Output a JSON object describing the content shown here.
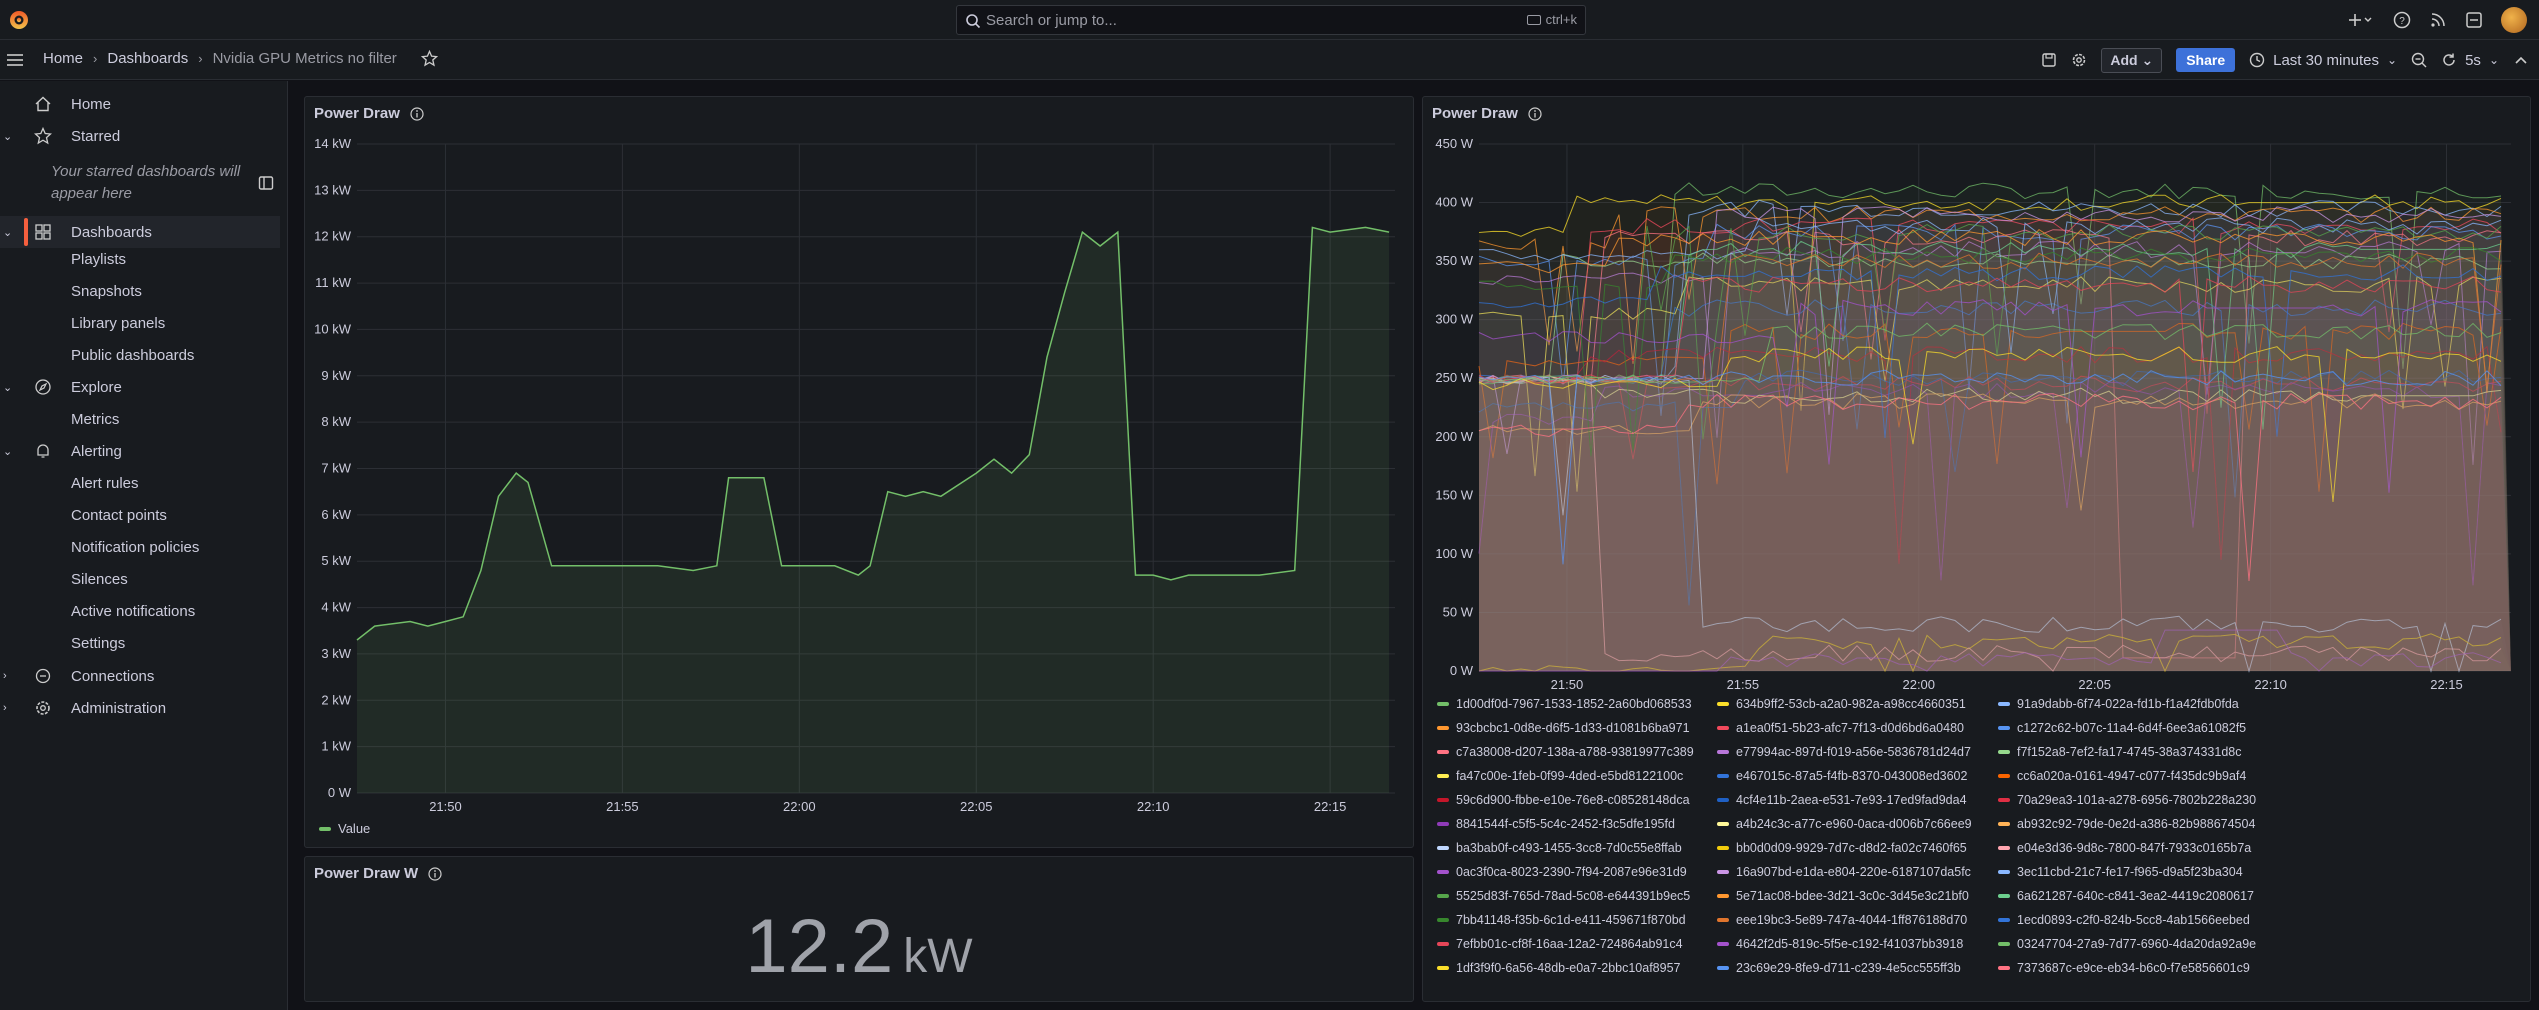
{
  "search": {
    "placeholder": "Search or jump to...",
    "shortcut": "ctrl+k"
  },
  "breadcrumb": {
    "home": "Home",
    "dashboards": "Dashboards",
    "current": "Nvidia GPU Metrics no filter"
  },
  "toolbar": {
    "add_label": "Add",
    "share_label": "Share",
    "time_range": "Last 30 minutes",
    "refresh_interval": "5s"
  },
  "sidebar": {
    "home": "Home",
    "starred": "Starred",
    "starred_note": "Your starred dashboards will appear here",
    "dashboards": "Dashboards",
    "dashboards_children": [
      "Playlists",
      "Snapshots",
      "Library panels",
      "Public dashboards"
    ],
    "explore": "Explore",
    "explore_children": [
      "Metrics"
    ],
    "alerting": "Alerting",
    "alerting_children": [
      "Alert rules",
      "Contact points",
      "Notification policies",
      "Silences",
      "Active notifications",
      "Settings"
    ],
    "connections": "Connections",
    "administration": "Administration"
  },
  "panels": {
    "left_title": "Power Draw",
    "left_legend": "Value",
    "right_title": "Power Draw",
    "stat_title": "Power Draw W",
    "stat_value": "12.2",
    "stat_unit": "kW"
  },
  "colors": {
    "accent": "#f55f3e",
    "series_green": "#73bf69",
    "share_blue": "#3d71d9"
  },
  "chart_data": [
    {
      "type": "area",
      "title": "Power Draw",
      "x_ticks": [
        "21:50",
        "21:55",
        "22:00",
        "22:05",
        "22:10",
        "22:15"
      ],
      "y_ticks": [
        "0 W",
        "1 kW",
        "2 kW",
        "3 kW",
        "4 kW",
        "5 kW",
        "6 kW",
        "7 kW",
        "8 kW",
        "9 kW",
        "10 kW",
        "11 kW",
        "12 kW",
        "13 kW",
        "14 kW"
      ],
      "ylim": [
        0,
        14
      ],
      "series": [
        {
          "name": "Value",
          "x": [
            "21:47:30",
            "21:48",
            "21:49",
            "21:49:30",
            "21:50",
            "21:50:30",
            "21:51",
            "21:51:30",
            "21:52",
            "21:52:20",
            "21:53",
            "21:54",
            "21:55",
            "21:56",
            "21:57",
            "21:57:40",
            "21:58",
            "21:59",
            "21:59:30",
            "22:00",
            "22:01",
            "22:01:40",
            "22:02",
            "22:02:30",
            "22:03",
            "22:03:30",
            "22:04",
            "22:05",
            "22:05:30",
            "22:06",
            "22:06:30",
            "22:07",
            "22:07:30",
            "22:08",
            "22:08:30",
            "22:09",
            "22:09:30",
            "22:10",
            "22:10:30",
            "22:11",
            "22:12",
            "22:13",
            "22:14",
            "22:14:30",
            "22:15",
            "22:16",
            "22:16:40"
          ],
          "values": [
            3.3,
            3.6,
            3.7,
            3.6,
            3.7,
            3.8,
            4.8,
            6.4,
            6.9,
            6.7,
            4.9,
            4.9,
            4.9,
            4.9,
            4.8,
            4.9,
            6.8,
            6.8,
            4.9,
            4.9,
            4.9,
            4.7,
            4.9,
            6.5,
            6.4,
            6.5,
            6.4,
            6.9,
            7.2,
            6.9,
            7.3,
            9.4,
            10.8,
            12.1,
            11.8,
            12.1,
            4.7,
            4.7,
            4.6,
            4.7,
            4.7,
            4.7,
            4.8,
            12.2,
            12.1,
            12.2,
            12.1
          ]
        }
      ]
    },
    {
      "type": "line",
      "title": "Power Draw",
      "x_ticks": [
        "21:50",
        "21:55",
        "22:00",
        "22:05",
        "22:10",
        "22:15"
      ],
      "y_ticks": [
        "0 W",
        "50 W",
        "100 W",
        "150 W",
        "200 W",
        "250 W",
        "300 W",
        "350 W",
        "400 W",
        "450 W"
      ],
      "ylim": [
        0,
        450
      ],
      "legend_placement": "bottom",
      "series": [
        {
          "name": "1d00df0d-7967-1533-1852-2a60bd068533",
          "color": "#73bf69"
        },
        {
          "name": "634b9ff2-53cb-a2a0-982a-a98cc4660351",
          "color": "#fade2a"
        },
        {
          "name": "91a9dabb-6f74-022a-fd1b-f1a42fdb0fda",
          "color": "#8ab8ff"
        },
        {
          "name": "93cbcbc1-0d8e-d6f5-1d33-d1081b6ba971",
          "color": "#ff9830"
        },
        {
          "name": "a1ea0f51-5b23-afc7-7f13-d0d6bd6a0480",
          "color": "#f2495c"
        },
        {
          "name": "c1272c62-b07c-11a4-6d4f-6ee3a61082f5",
          "color": "#5794f2"
        },
        {
          "name": "c7a38008-d207-138a-a788-93819977c389",
          "color": "#ff7383"
        },
        {
          "name": "e77994ac-897d-f019-a56e-5836781d24d7",
          "color": "#b877d9"
        },
        {
          "name": "f7f152a8-7ef2-fa17-4745-38a374331d8c",
          "color": "#96d98d"
        },
        {
          "name": "fa47c00e-1feb-0f99-4ded-e5bd8122100c",
          "color": "#ffee52"
        },
        {
          "name": "e467015c-87a5-f4fb-8370-043008ed3602",
          "color": "#3274d9"
        },
        {
          "name": "cc6a020a-0161-4947-c077-f435dc9b9af4",
          "color": "#fa6400"
        },
        {
          "name": "59c6d900-fbbe-e10e-76e8-c08528148dca",
          "color": "#c4162a"
        },
        {
          "name": "4cf4e11b-2aea-e531-7e93-17ed9fad9da4",
          "color": "#1f60c4"
        },
        {
          "name": "70a29ea3-101a-a278-6956-7802b228a230",
          "color": "#e02f44"
        },
        {
          "name": "8841544f-c5f5-5c4c-2452-f3c5dfe195fd",
          "color": "#8f3bb8"
        },
        {
          "name": "a4b24c3c-a77c-e960-0aca-d006b7c66ee9",
          "color": "#fff899"
        },
        {
          "name": "ab932c92-79de-0e2d-a386-82b988674504",
          "color": "#ffb357"
        },
        {
          "name": "ba3bab0f-c493-1455-3cc8-7d0c55e8ffab",
          "color": "#c0d8ff"
        },
        {
          "name": "bb0d0d09-9929-7d7c-d8d2-fa02c7460f65",
          "color": "#f2cc0c"
        },
        {
          "name": "e04e3d36-9d8c-7800-847f-7933c0165b7a",
          "color": "#ffa6b0"
        },
        {
          "name": "0ac3f0ca-8023-2390-7f94-2087e96e31d9",
          "color": "#a352cc"
        },
        {
          "name": "16a907bd-e1da-e804-220e-6187107da5fc",
          "color": "#ca95e5"
        },
        {
          "name": "3ec11cbd-21c7-fe17-f965-d9a5f23ba304",
          "color": "#8ab8ff"
        },
        {
          "name": "5525d83f-765d-78ad-5c08-e644391b9ec5",
          "color": "#56a64b"
        },
        {
          "name": "5e71ac08-bdee-3d21-3c0c-3d45e3c21bf0",
          "color": "#ff9830"
        },
        {
          "name": "6a621287-640c-c841-3ea2-4419c2080617",
          "color": "#6ccf8e"
        },
        {
          "name": "7bb41148-f35b-6c1d-e411-459671f870bd",
          "color": "#37872d"
        },
        {
          "name": "eee19bc3-5e89-747a-4044-1ff876188d70",
          "color": "#e0752d"
        },
        {
          "name": "1ecd0893-c2f0-824b-5cc8-4ab1566eebed",
          "color": "#3274d9"
        },
        {
          "name": "7efbb01c-cf8f-16aa-12a2-724864ab91c4",
          "color": "#e54658"
        },
        {
          "name": "4642f2d5-819c-5f5e-c192-f41037bb3918",
          "color": "#a352cc"
        },
        {
          "name": "03247704-27a9-7d77-6960-4da20da92a9e",
          "color": "#73bf69"
        },
        {
          "name": "1df3f9f0-6a56-48db-e0a7-2bbc10af8957",
          "color": "#fade2a"
        },
        {
          "name": "23c69e29-8fe9-d711-c239-4e5cc555ff3b",
          "color": "#5794f2"
        },
        {
          "name": "7373687c-e9ce-eb34-b6c0-f7e5856601c9",
          "color": "#ff7383"
        }
      ]
    }
  ]
}
